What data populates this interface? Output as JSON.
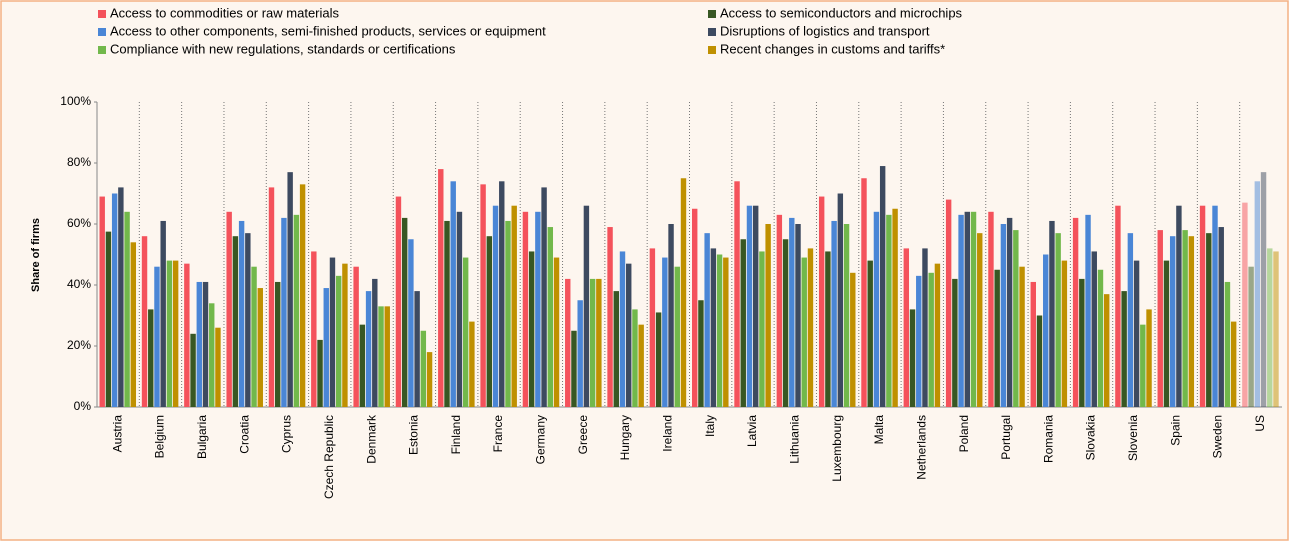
{
  "chart_data": {
    "type": "bar",
    "y_label": "Share of firms",
    "categories": [
      "Austria",
      "Belgium",
      "Bulgaria",
      "Croatia",
      "Cyprus",
      "Czech Republic",
      "Denmark",
      "Estonia",
      "Finland",
      "France",
      "Germany",
      "Greece",
      "Hungary",
      "Ireland",
      "Italy",
      "Latvia",
      "Lithuania",
      "Luxembourg",
      "Malta",
      "Netherlands",
      "Poland",
      "Portugal",
      "Romania",
      "Slovakia",
      "Slovenia",
      "Spain",
      "Sweden",
      "US"
    ],
    "series": [
      {
        "name": "Access to commodities or raw materials",
        "color": "#f4525b",
        "values": [
          69,
          56,
          47,
          64,
          72,
          51,
          46,
          69,
          78,
          73,
          64,
          42,
          59,
          52,
          65,
          74,
          63,
          69,
          75,
          52,
          68,
          64,
          41,
          62,
          66,
          58,
          66,
          67
        ]
      },
      {
        "name": "Access to semiconductors and microchips",
        "color": "#385723",
        "values": [
          57.5,
          32,
          24,
          56,
          41,
          22,
          27,
          62,
          61,
          56,
          51,
          25,
          38,
          31,
          35,
          55,
          55,
          51,
          48,
          32,
          42,
          45,
          30,
          42,
          38,
          48,
          57,
          46
        ]
      },
      {
        "name": "Access to other components, semi-finished products, services or equipment",
        "color": "#4a86d6",
        "values": [
          70,
          46,
          41,
          61,
          62,
          39,
          38,
          55,
          74,
          66,
          64,
          35,
          51,
          49,
          57,
          66,
          62,
          61,
          64,
          43,
          63,
          60,
          50,
          63,
          57,
          56,
          66,
          74
        ]
      },
      {
        "name": "Disruptions of logistics and transport",
        "color": "#3d4a60",
        "values": [
          72,
          61,
          41,
          57,
          77,
          49,
          42,
          38,
          64,
          74,
          72,
          66,
          47,
          60,
          52,
          66,
          60,
          70,
          79,
          52,
          64,
          62,
          61,
          51,
          48,
          66,
          59,
          77
        ]
      },
      {
        "name": "Compliance with new regulations, standards or certifications",
        "color": "#72b84b",
        "values": [
          64,
          48,
          34,
          46,
          63,
          43,
          33,
          25,
          49,
          61,
          59,
          42,
          32,
          46,
          50,
          51,
          49,
          60,
          63,
          44,
          64,
          58,
          57,
          45,
          27,
          58,
          41,
          52
        ]
      },
      {
        "name": "Recent changes in customs and tariffs*",
        "color": "#bf9000",
        "values": [
          54,
          48,
          26,
          39,
          73,
          47,
          33,
          18,
          28,
          66,
          49,
          42,
          27,
          75,
          49,
          60,
          52,
          44,
          65,
          47,
          57,
          46,
          48,
          37,
          32,
          56,
          28,
          51
        ]
      }
    ],
    "faded_categories": [
      27
    ],
    "ylim": [
      0,
      100
    ],
    "yticks": [
      {
        "value": 0,
        "label": "0%"
      },
      {
        "value": 20,
        "label": "20%"
      },
      {
        "value": 40,
        "label": "40%"
      },
      {
        "value": 60,
        "label": "60%"
      },
      {
        "value": 80,
        "label": "80%"
      },
      {
        "value": 100,
        "label": "100%"
      }
    ],
    "grid": false
  }
}
